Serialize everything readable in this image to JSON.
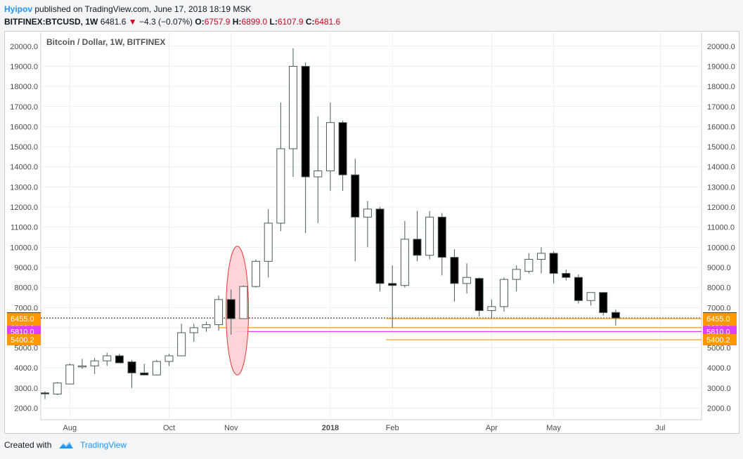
{
  "header": {
    "author": "Hyipov",
    "published": "published on TradingView.com, June 17, 2018 18:19 MSK",
    "symbol": "BITFINEX:BTCUSD, 1W",
    "last": "6481.6",
    "change_arrow": "▼",
    "change": "−4.3 (−0.07%)",
    "o_label": "O:",
    "o_value": "6757.9",
    "h_label": "H:",
    "h_value": "6899.0",
    "l_label": "L:",
    "l_value": "6107.9",
    "c_label": "C:",
    "c_value": "6481.6"
  },
  "footer": {
    "created_with": "Created with",
    "brand": "TradingView"
  },
  "chart_data": {
    "type": "candlestick",
    "title": "Bitcoin / Dollar, 1W, BITFINEX",
    "ylim": [
      1500,
      20500
    ],
    "y_ticks": [
      "2000.0",
      "3000.0",
      "4000.0",
      "5000.0",
      "6000.0",
      "7000.0",
      "8000.0",
      "9000.0",
      "10000.0",
      "11000.0",
      "12000.0",
      "13000.0",
      "14000.0",
      "15000.0",
      "16000.0",
      "17000.0",
      "18000.0",
      "19000.0",
      "20000.0"
    ],
    "x_ticks": [
      {
        "label": "Aug",
        "i": 2,
        "bold": false
      },
      {
        "label": "Oct",
        "i": 10,
        "bold": false
      },
      {
        "label": "Nov",
        "i": 15,
        "bold": false
      },
      {
        "label": "2018",
        "i": 23,
        "bold": true
      },
      {
        "label": "Feb",
        "i": 28,
        "bold": false
      },
      {
        "label": "Apr",
        "i": 36,
        "bold": false
      },
      {
        "label": "May",
        "i": 41,
        "bold": false
      },
      {
        "label": "Jul",
        "i": 49.6,
        "bold": false
      }
    ],
    "candles": [
      {
        "o": 2760,
        "h": 2840,
        "l": 2450,
        "c": 2720
      },
      {
        "o": 2700,
        "h": 3300,
        "l": 2650,
        "c": 3250
      },
      {
        "o": 3200,
        "h": 4220,
        "l": 3180,
        "c": 4150
      },
      {
        "o": 4050,
        "h": 4450,
        "l": 3950,
        "c": 4100
      },
      {
        "o": 4100,
        "h": 4500,
        "l": 3700,
        "c": 4350
      },
      {
        "o": 4350,
        "h": 4750,
        "l": 4100,
        "c": 4600
      },
      {
        "o": 4600,
        "h": 4700,
        "l": 4250,
        "c": 4250
      },
      {
        "o": 4300,
        "h": 4400,
        "l": 3000,
        "c": 3750
      },
      {
        "o": 3750,
        "h": 4200,
        "l": 3620,
        "c": 3650
      },
      {
        "o": 3650,
        "h": 4400,
        "l": 3620,
        "c": 4320
      },
      {
        "o": 4320,
        "h": 4700,
        "l": 4100,
        "c": 4600
      },
      {
        "o": 4600,
        "h": 6200,
        "l": 4600,
        "c": 5750
      },
      {
        "o": 5750,
        "h": 6200,
        "l": 5300,
        "c": 6000
      },
      {
        "o": 6000,
        "h": 6300,
        "l": 5800,
        "c": 6150
      },
      {
        "o": 6150,
        "h": 7600,
        "l": 5850,
        "c": 7400
      },
      {
        "o": 7400,
        "h": 7900,
        "l": 5650,
        "c": 6450
      },
      {
        "o": 6450,
        "h": 8100,
        "l": 6450,
        "c": 8050
      },
      {
        "o": 8050,
        "h": 9400,
        "l": 8000,
        "c": 9300
      },
      {
        "o": 9300,
        "h": 11900,
        "l": 8500,
        "c": 11200
      },
      {
        "o": 11200,
        "h": 17200,
        "l": 10800,
        "c": 14900
      },
      {
        "o": 14900,
        "h": 19900,
        "l": 13500,
        "c": 19000
      },
      {
        "o": 19000,
        "h": 19200,
        "l": 10700,
        "c": 13500
      },
      {
        "o": 13500,
        "h": 16500,
        "l": 11200,
        "c": 13800
      },
      {
        "o": 13800,
        "h": 17200,
        "l": 12800,
        "c": 16200
      },
      {
        "o": 16200,
        "h": 16300,
        "l": 12800,
        "c": 13600
      },
      {
        "o": 13600,
        "h": 14400,
        "l": 9300,
        "c": 11500
      },
      {
        "o": 11500,
        "h": 12300,
        "l": 10000,
        "c": 11900
      },
      {
        "o": 11900,
        "h": 12000,
        "l": 7800,
        "c": 8200
      },
      {
        "o": 8200,
        "h": 9100,
        "l": 6000,
        "c": 8100
      },
      {
        "o": 8100,
        "h": 11300,
        "l": 8000,
        "c": 10400
      },
      {
        "o": 10400,
        "h": 11800,
        "l": 9300,
        "c": 9600
      },
      {
        "o": 9600,
        "h": 11800,
        "l": 9400,
        "c": 11500
      },
      {
        "o": 11500,
        "h": 11700,
        "l": 8600,
        "c": 9500
      },
      {
        "o": 9500,
        "h": 9900,
        "l": 7300,
        "c": 8200
      },
      {
        "o": 8200,
        "h": 9200,
        "l": 7700,
        "c": 8500
      },
      {
        "o": 8450,
        "h": 8500,
        "l": 6550,
        "c": 6850
      },
      {
        "o": 6850,
        "h": 7400,
        "l": 6500,
        "c": 7050
      },
      {
        "o": 7050,
        "h": 8500,
        "l": 6800,
        "c": 8400
      },
      {
        "o": 8400,
        "h": 9100,
        "l": 7800,
        "c": 8900
      },
      {
        "o": 8800,
        "h": 9700,
        "l": 8700,
        "c": 9400
      },
      {
        "o": 9400,
        "h": 10000,
        "l": 8700,
        "c": 9700
      },
      {
        "o": 9700,
        "h": 9800,
        "l": 8200,
        "c": 8700
      },
      {
        "o": 8700,
        "h": 8900,
        "l": 8350,
        "c": 8500
      },
      {
        "o": 8500,
        "h": 8650,
        "l": 7200,
        "c": 7350
      },
      {
        "o": 7350,
        "h": 7750,
        "l": 7100,
        "c": 7750
      },
      {
        "o": 7750,
        "h": 7750,
        "l": 6600,
        "c": 6750
      },
      {
        "o": 6757.9,
        "h": 6899.0,
        "l": 6107.9,
        "c": 6481.6
      }
    ],
    "levels": [
      {
        "label": "6481.6",
        "value": 6481.6,
        "color": "#131722",
        "text_color": "#ffffff",
        "style": "dotted",
        "from_i": -3
      },
      {
        "label": "6455.0",
        "value": 6455.0,
        "color": "#ff9800",
        "text_color": "#ffffff",
        "style": "solid",
        "from_i": -3
      },
      {
        "label": "6000.0",
        "value": 6000.0,
        "color": "#ff9800",
        "text_color": "#ffffff",
        "style": "solid",
        "from_i": 14
      },
      {
        "label": "5810.0",
        "value": 5810.0,
        "color": "#e040fb",
        "text_color": "#ffffff",
        "style": "solid",
        "from_i": 15.5
      },
      {
        "label": "5400.2",
        "value": 5400.2,
        "color": "#ff9800",
        "text_color": "#ffffff",
        "style": "solid",
        "from_i": 27.5
      }
    ],
    "line_6455_from_i": 27.5,
    "highlight_ellipse": {
      "center_i": 15.5,
      "top": 10050,
      "bottom": 3650,
      "stroke": "#e53935",
      "fill": "#ffcdd2"
    },
    "colors": {
      "up_fill": "#ffffff",
      "down_fill": "#000000",
      "outline": "#4a5c55",
      "grid": "#eceff2",
      "axis_text": "#4a4a4a"
    }
  }
}
